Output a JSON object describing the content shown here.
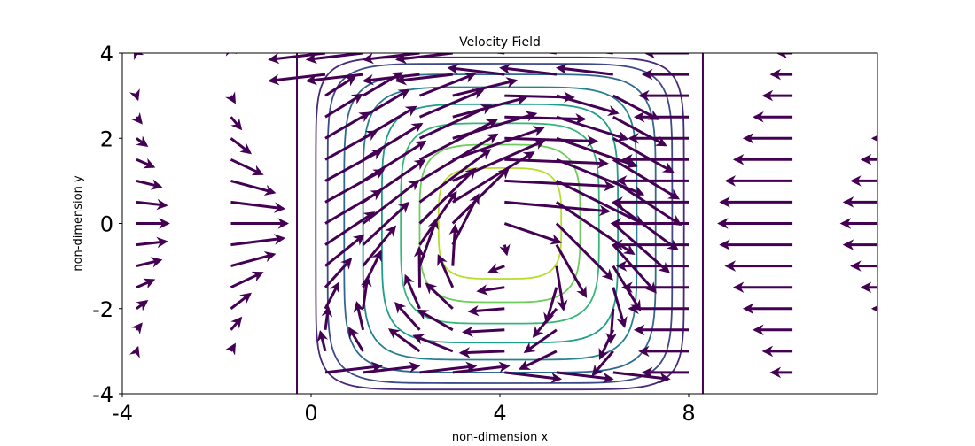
{
  "chart_data": {
    "type": "quiver-contour",
    "title": "Velocity Field",
    "xlabel": "non-dimension x",
    "ylabel": "non-dimension y",
    "xlim": [
      -4,
      12
    ],
    "ylim": [
      -4,
      4
    ],
    "x_ticks": [
      -4,
      0,
      4,
      8
    ],
    "x_tick_labels": [
      "-4",
      "0",
      "4",
      "8"
    ],
    "y_ticks": [
      -4,
      -2,
      0,
      2,
      4
    ],
    "y_tick_labels": [
      "-4",
      "-2",
      "0",
      "2",
      "4"
    ],
    "grid": false,
    "legend": "none",
    "vertical_lines_x": [
      -0.3,
      8.3
    ],
    "contour_center": [
      4,
      0
    ],
    "contour_levels": [
      {
        "a": 1.3,
        "b": 1.3,
        "n": 4,
        "color": "#b5de2b"
      },
      {
        "a": 1.7,
        "b": 1.85,
        "n": 4,
        "color": "#6ccd5a"
      },
      {
        "a": 2.1,
        "b": 2.35,
        "n": 4.5,
        "color": "#35b779"
      },
      {
        "a": 2.5,
        "b": 2.8,
        "n": 5,
        "color": "#1f9e89"
      },
      {
        "a": 2.9,
        "b": 3.2,
        "n": 5.5,
        "color": "#26828e"
      },
      {
        "a": 3.3,
        "b": 3.5,
        "n": 6,
        "color": "#31688e"
      },
      {
        "a": 3.65,
        "b": 3.75,
        "n": 7,
        "color": "#3e4989"
      },
      {
        "a": 3.9,
        "b": 3.9,
        "n": 8,
        "color": "#482878"
      }
    ],
    "quiver_color": "#440154",
    "vortex_columns_x": [
      0.3,
      1.1,
      2.3,
      3.0,
      4.1,
      5.2,
      6.4
    ],
    "left_columns_x": [
      -3.7,
      -1.7
    ],
    "right_columns_x": [
      10.2,
      12.5
    ],
    "edge_column_x": 8.0,
    "rows_y": [
      -3.5,
      -3.0,
      -2.5,
      -2.0,
      -1.5,
      -1.0,
      -0.5,
      0.0,
      0.5,
      1.0,
      1.5,
      2.0,
      2.5,
      3.0,
      3.5,
      4.0
    ]
  }
}
